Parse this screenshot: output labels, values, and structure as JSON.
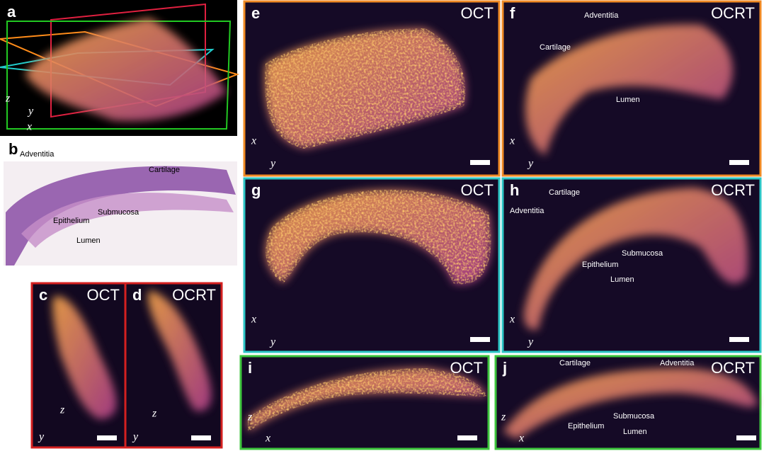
{
  "panels": [
    {
      "letter": "a",
      "axes": [
        "z",
        "y",
        "x"
      ]
    },
    {
      "letter": "b",
      "annotations": [
        "Adventitia",
        "Cartilage",
        "Submucosa",
        "Epithelium",
        "Lumen"
      ]
    },
    {
      "letter": "c",
      "title": "OCT",
      "axes": [
        "z",
        "y"
      ]
    },
    {
      "letter": "d",
      "title": "OCRT",
      "axes": [
        "z",
        "y"
      ]
    },
    {
      "letter": "e",
      "title": "OCT",
      "axes": [
        "x",
        "y"
      ]
    },
    {
      "letter": "f",
      "title": "OCRT",
      "annotations": [
        "Adventitia",
        "Cartilage",
        "Lumen"
      ],
      "axes": [
        "x",
        "y"
      ]
    },
    {
      "letter": "g",
      "title": "OCT",
      "axes": [
        "x",
        "y"
      ]
    },
    {
      "letter": "h",
      "title": "OCRT",
      "annotations": [
        "Cartilage",
        "Adventitia",
        "Submucosa",
        "Epithelium",
        "Lumen"
      ],
      "axes": [
        "x",
        "y"
      ]
    },
    {
      "letter": "i",
      "title": "OCT",
      "axes": [
        "z",
        "x"
      ]
    },
    {
      "letter": "j",
      "title": "OCRT",
      "annotations": [
        "Cartilage",
        "Adventitia",
        "Submucosa",
        "Epithelium",
        "Lumen"
      ],
      "axes": [
        "z",
        "x"
      ]
    }
  ]
}
